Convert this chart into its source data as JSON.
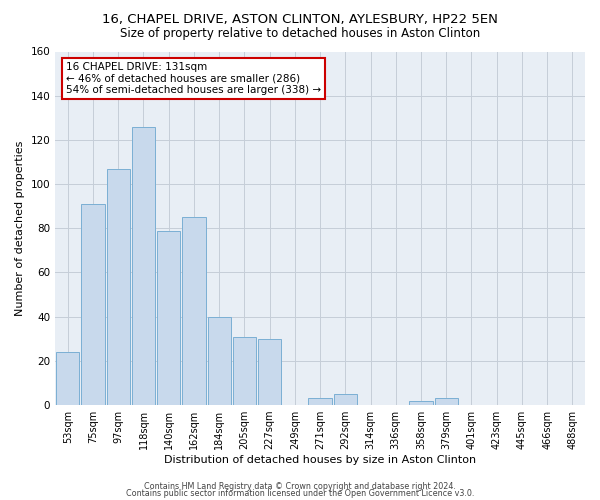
{
  "title": "16, CHAPEL DRIVE, ASTON CLINTON, AYLESBURY, HP22 5EN",
  "subtitle": "Size of property relative to detached houses in Aston Clinton",
  "xlabel": "Distribution of detached houses by size in Aston Clinton",
  "ylabel": "Number of detached properties",
  "bar_labels": [
    "53sqm",
    "75sqm",
    "97sqm",
    "118sqm",
    "140sqm",
    "162sqm",
    "184sqm",
    "205sqm",
    "227sqm",
    "249sqm",
    "271sqm",
    "292sqm",
    "314sqm",
    "336sqm",
    "358sqm",
    "379sqm",
    "401sqm",
    "423sqm",
    "445sqm",
    "466sqm",
    "488sqm"
  ],
  "bar_values": [
    24,
    91,
    107,
    126,
    79,
    85,
    40,
    31,
    30,
    0,
    3,
    5,
    0,
    0,
    2,
    3,
    0,
    0,
    0,
    0,
    0
  ],
  "bar_color": "#c8d9ec",
  "bar_edge_color": "#7bafd4",
  "annotation_text": "16 CHAPEL DRIVE: 131sqm\n← 46% of detached houses are smaller (286)\n54% of semi-detached houses are larger (338) →",
  "annotation_box_color": "#ffffff",
  "annotation_box_edge": "#cc0000",
  "ylim": [
    0,
    160
  ],
  "yticks": [
    0,
    20,
    40,
    60,
    80,
    100,
    120,
    140,
    160
  ],
  "footer1": "Contains HM Land Registry data © Crown copyright and database right 2024.",
  "footer2": "Contains public sector information licensed under the Open Government Licence v3.0.",
  "bg_color": "#ffffff",
  "plot_bg_color": "#e8eef5",
  "grid_color": "#c5cdd8",
  "title_fontsize": 9.5,
  "subtitle_fontsize": 8.5,
  "xlabel_fontsize": 8,
  "ylabel_fontsize": 8,
  "annotation_fontsize": 7.5
}
